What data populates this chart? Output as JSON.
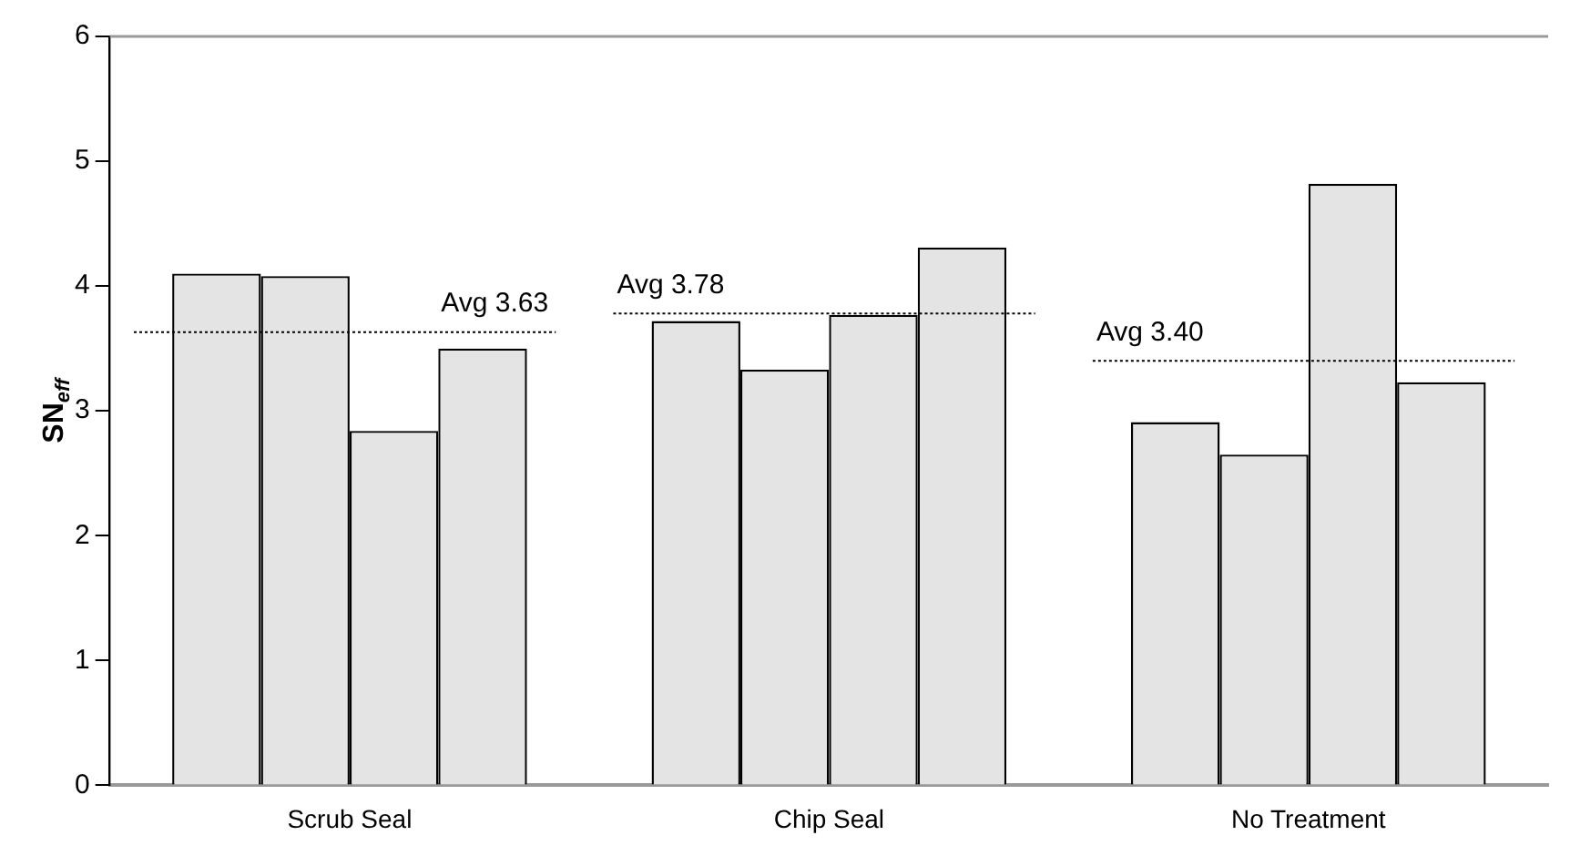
{
  "chart_data": {
    "type": "bar",
    "ylabel": "SN$_{eff}$",
    "categories": [
      "Scrub Seal",
      "Chip Seal",
      "No Treatment"
    ],
    "series": [
      {
        "color": "#e4e4e4",
        "values": [
          4.1,
          3.72,
          2.91
        ]
      },
      {
        "color": "#e4e4e4",
        "values": [
          4.08,
          3.33,
          2.65
        ]
      },
      {
        "color": "#e4e4e4",
        "values": [
          2.84,
          3.77,
          4.82
        ]
      },
      {
        "color": "#e4e4e4",
        "values": [
          3.5,
          4.31,
          3.23
        ]
      }
    ],
    "ylim": [
      0,
      6
    ],
    "yticks": [
      0,
      1,
      2,
      3,
      4,
      5,
      6
    ],
    "ref_lines": [
      {
        "axis": "y",
        "value": 3.63,
        "label": "Avg 3.63",
        "color": "#000000",
        "line_style": "dotted"
      },
      {
        "axis": "y",
        "value": 3.78,
        "label": "Avg 3.78",
        "color": "#000000",
        "line_style": "dotted"
      },
      {
        "axis": "y",
        "value": 3.4,
        "label": "Avg 3.40",
        "color": "#000000",
        "line_style": "dotted"
      }
    ],
    "legend": false
  }
}
